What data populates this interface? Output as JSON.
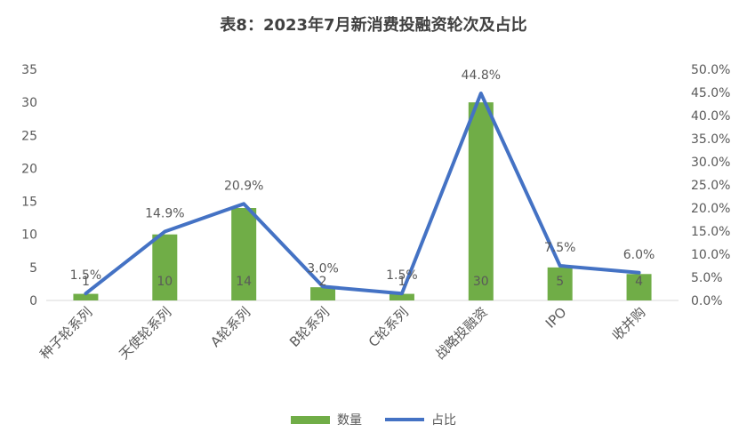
{
  "chart_data": {
    "type": "bar",
    "title": "表8：2023年7月新消费投融资轮次及占比",
    "categories": [
      "种子轮系列",
      "天使轮系列",
      "A轮系列",
      "B轮系列",
      "C轮系列",
      "战略投融资",
      "IPO",
      "收并购"
    ],
    "series": [
      {
        "name": "数量",
        "type": "bar",
        "axis": "left",
        "values": [
          1,
          10,
          14,
          2,
          1,
          30,
          5,
          4
        ],
        "labels": [
          "1",
          "10",
          "14",
          "2",
          "1",
          "30",
          "5",
          "4"
        ]
      },
      {
        "name": "占比",
        "type": "line",
        "axis": "right",
        "values": [
          1.5,
          14.9,
          20.9,
          3.0,
          1.5,
          44.8,
          7.5,
          6.0
        ],
        "labels": [
          "1.5%",
          "14.9%",
          "20.9%",
          "3.0%",
          "1.5%",
          "44.8%",
          "7.5%",
          "6.0%"
        ]
      }
    ],
    "y_left": {
      "ylim": [
        0,
        35
      ],
      "ticks": [
        "0",
        "5",
        "10",
        "15",
        "20",
        "25",
        "30",
        "35"
      ]
    },
    "y_right": {
      "ylim": [
        0,
        50
      ],
      "ticks": [
        "0.0%",
        "5.0%",
        "10.0%",
        "15.0%",
        "20.0%",
        "25.0%",
        "30.0%",
        "35.0%",
        "40.0%",
        "45.0%",
        "50.0%"
      ]
    },
    "grid": false,
    "legend": "bottom",
    "colors": {
      "bar": "#70AD47",
      "line": "#4472C4",
      "text": "#595959",
      "axis": "#D9D9D9"
    }
  }
}
